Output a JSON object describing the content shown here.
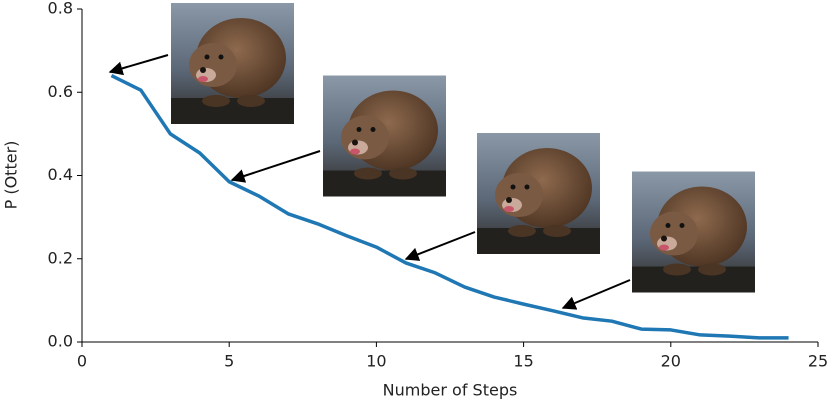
{
  "chart_data": {
    "type": "line",
    "xlabel": "Number of Steps",
    "ylabel": "P (Otter)",
    "x": [
      1,
      2,
      3,
      4,
      5,
      6,
      7,
      8,
      9,
      10,
      11,
      12,
      13,
      14,
      15,
      16,
      17,
      18,
      19,
      20,
      21,
      22,
      23,
      24
    ],
    "values": [
      0.64,
      0.605,
      0.5,
      0.454,
      0.385,
      0.351,
      0.308,
      0.284,
      0.255,
      0.228,
      0.19,
      0.166,
      0.132,
      0.108,
      0.091,
      0.075,
      0.058,
      0.05,
      0.031,
      0.029,
      0.017,
      0.014,
      0.01,
      0.01
    ],
    "color": "#1f77b4",
    "xlim": [
      0,
      25
    ],
    "xticks": [
      0,
      5,
      10,
      15,
      20,
      25
    ],
    "ylim": [
      0,
      0.8
    ],
    "yticks": [
      {
        "value": 0,
        "label": "0.0"
      },
      0.2,
      0.4,
      0.6,
      0.8
    ],
    "grid": false
  }
}
